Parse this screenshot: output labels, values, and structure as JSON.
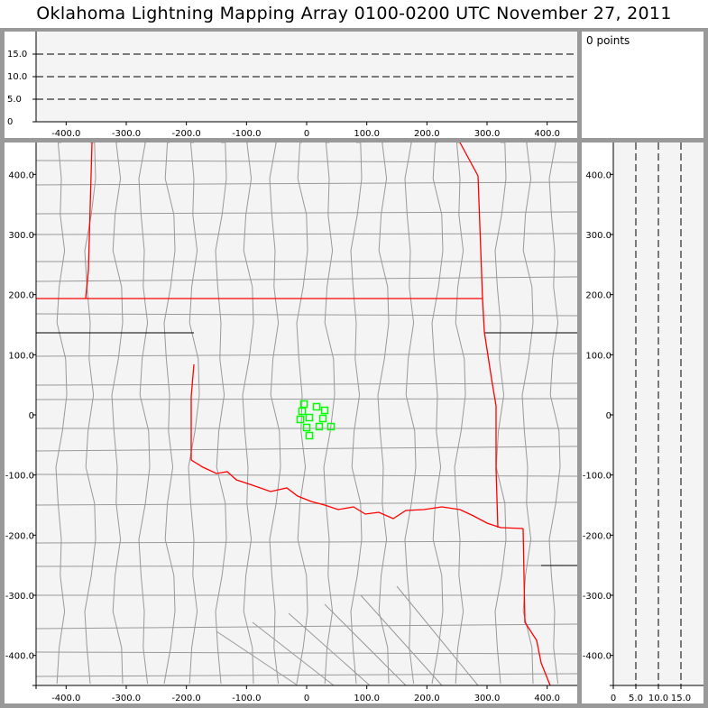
{
  "title": "Oklahoma Lightning Mapping Array   0100-0200 UTC  November 27, 2011",
  "points_label": "0 points",
  "colors": {
    "frame": "#999999",
    "plot_bg": "#f4f4f4",
    "state_border": "#ff0000",
    "county_border": "#999999",
    "source_marker": "#00ff00"
  },
  "top_panel": {
    "x_ticks": [
      "-400.0",
      "-300.0",
      "-200.0",
      "-100.0",
      "0",
      "100.0",
      "200.0",
      "300.0",
      "400.0"
    ],
    "y_ticks": [
      "0",
      "5.0",
      "10.0",
      "15.0"
    ]
  },
  "main_panel": {
    "x_ticks": [
      "-400.0",
      "-300.0",
      "-200.0",
      "-100.0",
      "0",
      "100.0",
      "200.0",
      "300.0",
      "400.0"
    ],
    "y_ticks": [
      "400.0",
      "300.0",
      "200.0",
      "100.0",
      "0",
      "-100.0",
      "-200.0",
      "-300.0",
      "-400.0"
    ]
  },
  "side_panel": {
    "x_ticks": [
      "0",
      "5.0",
      "10.0",
      "15.0"
    ],
    "y_ticks": [
      "400.0",
      "300.0",
      "200.0",
      "100.0",
      "0",
      "-100.0",
      "-200.0",
      "-300.0",
      "-400.0"
    ]
  },
  "stations": [
    {
      "x": -4.5,
      "y": 18
    },
    {
      "x": 16.5,
      "y": 13.5
    },
    {
      "x": 30,
      "y": 7.5
    },
    {
      "x": -7.5,
      "y": 6
    },
    {
      "x": 4.5,
      "y": -4.5
    },
    {
      "x": 27,
      "y": -6
    },
    {
      "x": -10.5,
      "y": -7.5
    },
    {
      "x": 40.5,
      "y": -19.5
    },
    {
      "x": 0,
      "y": -21
    },
    {
      "x": 21,
      "y": -19.5
    },
    {
      "x": 4.5,
      "y": -34.5
    }
  ]
}
